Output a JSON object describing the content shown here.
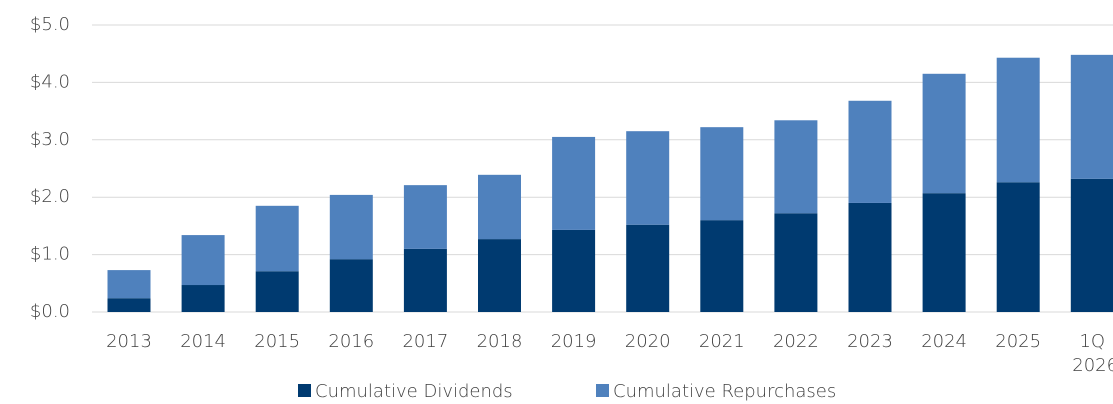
{
  "chart_data": {
    "type": "stacked_bar",
    "categories": [
      "2013",
      "2014",
      "2015",
      "2016",
      "2017",
      "2018",
      "2019",
      "2020",
      "2021",
      "2022",
      "2023",
      "2024",
      "2025",
      "1Q 2026"
    ],
    "series": [
      {
        "name": "Cumulative Dividends",
        "color": "#003a70",
        "values": [
          0.24,
          0.47,
          0.71,
          0.92,
          1.1,
          1.27,
          1.43,
          1.52,
          1.6,
          1.72,
          1.9,
          2.07,
          2.26,
          2.32
        ]
      },
      {
        "name": "Cumulative Repurchases",
        "color": "#4f81bd",
        "values": [
          0.49,
          0.87,
          1.14,
          1.12,
          1.11,
          1.12,
          1.62,
          1.63,
          1.62,
          1.62,
          1.78,
          2.08,
          2.17,
          2.16
        ]
      }
    ],
    "ylim": [
      0,
      5
    ],
    "yticks": [
      {
        "value": 0,
        "label": "$0.0"
      },
      {
        "value": 1,
        "label": "$1.0"
      },
      {
        "value": 2,
        "label": "$2.0"
      },
      {
        "value": 3,
        "label": "$3.0"
      },
      {
        "value": 4,
        "label": "$4.0"
      },
      {
        "value": 5,
        "label": "$5.0"
      }
    ],
    "grid": true,
    "legend": "bottom"
  }
}
